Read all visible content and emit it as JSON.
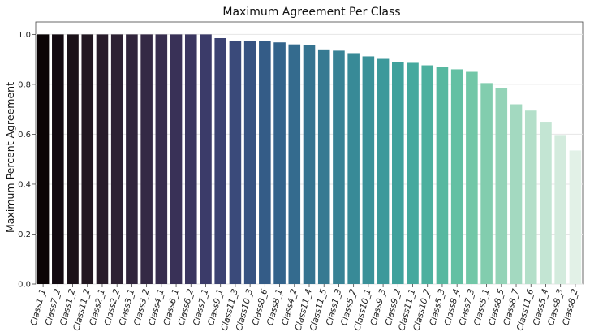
{
  "chart_data": {
    "type": "bar",
    "title": "Maximum Agreement Per Class",
    "xlabel": "",
    "ylabel": "Maximum Percent Agreement",
    "ylim": [
      0,
      1.05
    ],
    "yticks": [
      "0.0",
      "0.2",
      "0.4",
      "0.6",
      "0.8",
      "1.0"
    ],
    "grid": true,
    "categories": [
      "Class1_1",
      "Class7_2",
      "Class1_2",
      "Class11_2",
      "Class2_1",
      "Class2_2",
      "Class3_1",
      "Class3_2",
      "Class4_1",
      "Class6_1",
      "Class6_2",
      "Class7_1",
      "Class9_1",
      "Class11_3",
      "Class10_3",
      "Class8_6",
      "Class8_1",
      "Class4_2",
      "Class11_4",
      "Class11_5",
      "Class1_3",
      "Class5_2",
      "Class10_1",
      "Class9_3",
      "Class9_2",
      "Class11_1",
      "Class10_2",
      "Class5_3",
      "Class8_4",
      "Class7_3",
      "Class5_1",
      "Class8_5",
      "Class8_7",
      "Class11_6",
      "Class5_4",
      "Class8_3",
      "Class8_2"
    ],
    "values": [
      1.0,
      1.0,
      1.0,
      1.0,
      1.0,
      1.0,
      1.0,
      1.0,
      1.0,
      1.0,
      1.0,
      1.0,
      0.985,
      0.975,
      0.975,
      0.972,
      0.968,
      0.96,
      0.957,
      0.94,
      0.935,
      0.925,
      0.912,
      0.902,
      0.89,
      0.886,
      0.876,
      0.87,
      0.86,
      0.85,
      0.805,
      0.785,
      0.72,
      0.695,
      0.65,
      0.597,
      0.535
    ],
    "palette": "mako",
    "colors": [
      "#0b0405",
      "#130a11",
      "#1b1219",
      "#221721",
      "#281c2a",
      "#2d2133",
      "#31253c",
      "#342945",
      "#372d4e",
      "#393157",
      "#3a3660",
      "#3b3b69",
      "#3b4272",
      "#3a4a7a",
      "#375382",
      "#345c87",
      "#33638b",
      "#346b8e",
      "#357390",
      "#367a92",
      "#388295",
      "#388a97",
      "#3a9199",
      "#3c999b",
      "#3fa19c",
      "#45a99e",
      "#4db09f",
      "#57b8a0",
      "#63c0a3",
      "#72c7a7",
      "#82cdae",
      "#93d3b7",
      "#a3d9c0",
      "#b3dfc9",
      "#c3e5d3",
      "#d3ebdd",
      "#e2f1e7"
    ]
  }
}
